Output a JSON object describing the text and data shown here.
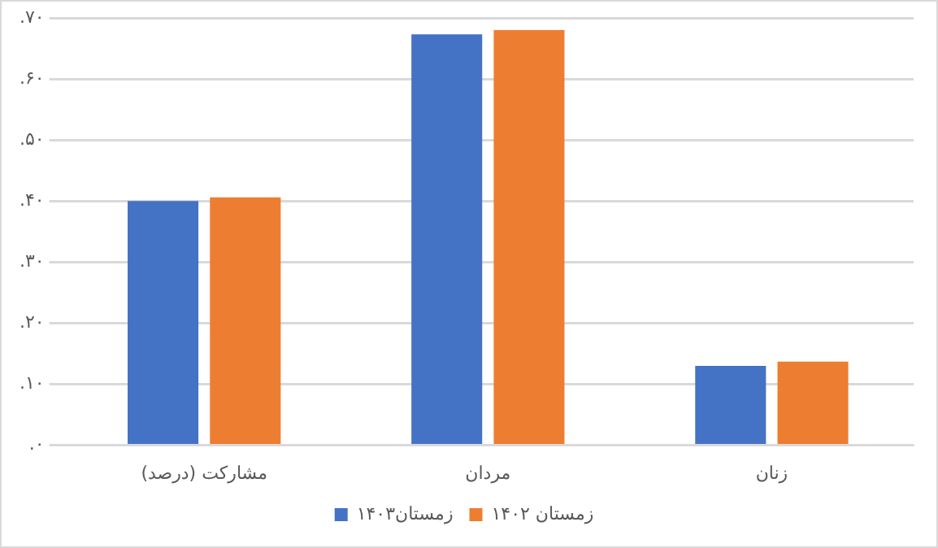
{
  "chart_data": {
    "type": "bar",
    "categories": [
      "مشارکت (درصد)",
      "مردان",
      "زنان"
    ],
    "series": [
      {
        "name": "زمستان۱۴۰۳",
        "color": "#4472c4",
        "values": [
          0.4,
          0.673,
          0.13
        ]
      },
      {
        "name": "زمستان ۱۴۰۲",
        "color": "#ed7d31",
        "values": [
          0.406,
          0.68,
          0.137
        ]
      }
    ],
    "ylim": [
      0,
      0.7
    ],
    "yticks": [
      {
        "value": 0,
        "label": ".۰"
      },
      {
        "value": 0.1,
        "label": ".۱۰"
      },
      {
        "value": 0.2,
        "label": ".۲۰"
      },
      {
        "value": 0.3,
        "label": ".۳۰"
      },
      {
        "value": 0.4,
        "label": ".۴۰"
      },
      {
        "value": 0.5,
        "label": ".۵۰"
      },
      {
        "value": 0.6,
        "label": ".۶۰"
      },
      {
        "value": 0.7,
        "label": ".۷۰"
      }
    ],
    "grid": "y",
    "legend": "bottom"
  }
}
